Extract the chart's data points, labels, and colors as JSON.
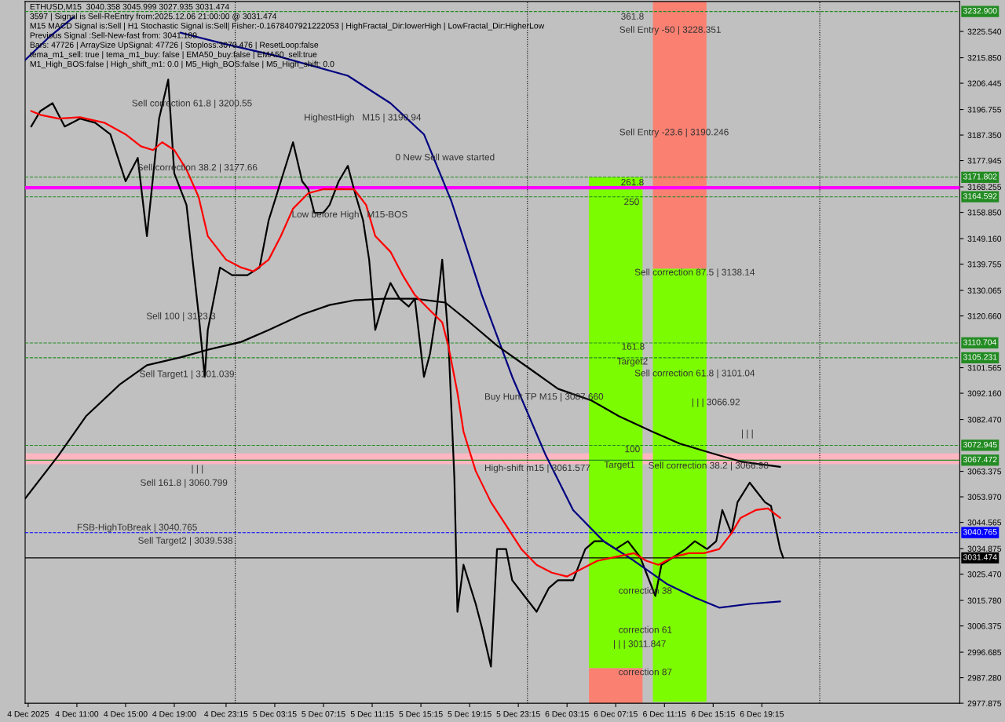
{
  "chart_data": {
    "type": "line",
    "title": "ETHUSD,M15  3040.358 3045.999 3027.935 3031.474",
    "xlim": [
      "2025-12-04T06:45",
      "2025-12-07T11:30"
    ],
    "ylim": [
      2977.875,
      3236.6
    ],
    "xticks": [
      {
        "value": "2025-12-04T07:00",
        "label": "4 Dec 2025"
      },
      {
        "value": "2025-12-04T11:00",
        "label": "4 Dec 11:00"
      },
      {
        "value": "2025-12-04T15:00",
        "label": "4 Dec 15:00"
      },
      {
        "value": "2025-12-04T19:00",
        "label": "4 Dec 19:00"
      },
      {
        "value": "2025-12-04T23:15",
        "label": "4 Dec 23:15"
      },
      {
        "value": "2025-12-05T03:15",
        "label": "5 Dec 03:15"
      },
      {
        "value": "2025-12-05T07:15",
        "label": "5 Dec 07:15"
      },
      {
        "value": "2025-12-05T11:15",
        "label": "5 Dec 11:15"
      },
      {
        "value": "2025-12-05T15:15",
        "label": "5 Dec 15:15"
      },
      {
        "value": "2025-12-05T19:15",
        "label": "5 Dec 19:15"
      },
      {
        "value": "2025-12-05T23:15",
        "label": "5 Dec 23:15"
      },
      {
        "value": "2025-12-06T03:15",
        "label": "6 Dec 03:15"
      },
      {
        "value": "2025-12-06T07:15",
        "label": "6 Dec 07:15"
      },
      {
        "value": "2025-12-06T11:15",
        "label": "6 Dec 11:15"
      },
      {
        "value": "2025-12-06T15:15",
        "label": "6 Dec 15:15"
      },
      {
        "value": "2025-12-06T19:15",
        "label": "6 Dec 19:15"
      }
    ],
    "yticks": [
      {
        "value": 3225.54,
        "label": "3225.540"
      },
      {
        "value": 3215.85,
        "label": "3215.850"
      },
      {
        "value": 3206.445,
        "label": "3206.445"
      },
      {
        "value": 3196.755,
        "label": "3196.755"
      },
      {
        "value": 3187.35,
        "label": "3187.350"
      },
      {
        "value": 3177.945,
        "label": "3177.945"
      },
      {
        "value": 3168.255,
        "label": "3168.255"
      },
      {
        "value": 3158.85,
        "label": "3158.850"
      },
      {
        "value": 3149.16,
        "label": "3149.160"
      },
      {
        "value": 3139.755,
        "label": "3139.755"
      },
      {
        "value": 3130.065,
        "label": "3130.065"
      },
      {
        "value": 3120.66,
        "label": "3120.660"
      },
      {
        "value": 3101.565,
        "label": "3101.565"
      },
      {
        "value": 3092.16,
        "label": "3092.160"
      },
      {
        "value": 3082.47,
        "label": "3082.470"
      },
      {
        "value": 3063.375,
        "label": "3063.375"
      },
      {
        "value": 3053.97,
        "label": "3053.970"
      },
      {
        "value": 3044.565,
        "label": "3044.565"
      },
      {
        "value": 3034.875,
        "label": "3034.875"
      },
      {
        "value": 3025.47,
        "label": "3025.470"
      },
      {
        "value": 3015.78,
        "label": "3015.780"
      },
      {
        "value": 3006.375,
        "label": "3006.375"
      },
      {
        "value": 2996.685,
        "label": "2996.685"
      },
      {
        "value": 2987.28,
        "label": "2987.280"
      },
      {
        "value": 2977.875,
        "label": "2977.875"
      }
    ],
    "grid": false,
    "legend": false,
    "series": [
      {
        "type": "bar",
        "color": "#7cfc00",
        "x": [
          "2025-12-06T07:15",
          "2025-12-06T12:30"
        ],
        "base": [
          2990.8,
          2978.4
        ],
        "values": [
          181.0,
          159.7
        ]
      },
      {
        "type": "bar",
        "color": "#fa8072",
        "x": [
          "2025-12-06T12:30",
          "2025-12-06T07:15"
        ],
        "base": [
          3138.1,
          2977.9
        ],
        "values": [
          98.5,
          12.9
        ]
      },
      {
        "color": "#000000",
        "x": [
          "2025-12-04T07:15",
          "2025-12-04T08:00",
          "2025-12-04T09:00",
          "2025-12-04T10:00",
          "2025-12-04T11:15",
          "2025-12-04T12:30",
          "2025-12-04T13:45",
          "2025-12-04T15:00",
          "2025-12-04T16:00",
          "2025-12-04T16:45",
          "2025-12-04T17:45",
          "2025-12-04T18:30",
          "2025-12-04T19:00",
          "2025-12-04T20:00",
          "2025-12-04T21:00",
          "2025-12-04T21:30",
          "2025-12-04T21:45",
          "2025-12-04T22:45",
          "2025-12-04T23:45",
          "2025-12-05T01:00",
          "2025-12-05T02:00",
          "2025-12-05T02:45",
          "2025-12-05T03:45",
          "2025-12-05T04:45",
          "2025-12-05T05:30",
          "2025-12-05T06:00",
          "2025-12-05T06:30",
          "2025-12-05T07:15",
          "2025-12-05T07:45",
          "2025-12-05T08:30",
          "2025-12-05T09:15",
          "2025-12-05T09:45",
          "2025-12-05T10:30",
          "2025-12-05T11:00",
          "2025-12-05T11:30",
          "2025-12-05T12:15",
          "2025-12-05T12:45",
          "2025-12-05T13:30",
          "2025-12-05T14:15",
          "2025-12-05T14:45",
          "2025-12-05T15:30",
          "2025-12-05T16:00",
          "2025-12-05T16:30",
          "2025-12-05T17:00",
          "2025-12-05T17:30",
          "2025-12-05T18:00",
          "2025-12-05T18:15",
          "2025-12-05T18:45",
          "2025-12-05T19:45",
          "2025-12-05T20:15",
          "2025-12-05T21:00",
          "2025-12-05T21:30",
          "2025-12-05T22:15",
          "2025-12-05T22:45",
          "2025-12-05T23:45",
          "2025-12-06T00:45",
          "2025-12-06T01:45",
          "2025-12-06T02:30",
          "2025-12-06T03:45",
          "2025-12-06T04:45",
          "2025-12-06T05:30",
          "2025-12-06T06:15",
          "2025-12-06T07:15",
          "2025-12-06T08:15",
          "2025-12-06T09:15",
          "2025-12-06T09:45",
          "2025-12-06T10:30",
          "2025-12-06T11:00",
          "2025-12-06T12:00",
          "2025-12-06T13:00",
          "2025-12-06T13:45",
          "2025-12-06T14:45",
          "2025-12-06T15:30",
          "2025-12-06T16:00",
          "2025-12-06T16:45",
          "2025-12-06T17:15",
          "2025-12-06T18:15",
          "2025-12-06T18:45",
          "2025-12-06T19:30",
          "2025-12-06T20:00",
          "2025-12-06T20:45",
          "2025-12-06T21:00"
        ],
        "values": [
          3190.5,
          3196.2,
          3199.1,
          3190.5,
          3193.4,
          3191.9,
          3187.6,
          3170.3,
          3178.9,
          3150.1,
          3193.4,
          3207.8,
          3173.2,
          3161.6,
          3121.2,
          3098.2,
          3115.5,
          3138.5,
          3135.7,
          3135.7,
          3138.5,
          3155.9,
          3170.3,
          3184.7,
          3170.3,
          3167.4,
          3158.7,
          3158.7,
          3161.6,
          3170.3,
          3176.0,
          3167.4,
          3155.9,
          3141.4,
          3115.5,
          3127.0,
          3132.8,
          3127.0,
          3124.1,
          3127.0,
          3098.2,
          3106.8,
          3121.2,
          3141.4,
          3112.6,
          3060.7,
          3011.6,
          3028.9,
          3014.5,
          3005.9,
          2991.4,
          3034.7,
          3034.7,
          3023.2,
          3017.4,
          3011.6,
          3020.3,
          3023.2,
          3023.2,
          3034.7,
          3037.6,
          3037.6,
          3034.7,
          3037.6,
          3031.8,
          3026.0,
          3017.4,
          3028.9,
          3031.8,
          3034.7,
          3037.6,
          3034.7,
          3037.6,
          3049.1,
          3040.5,
          3052.0,
          3059.2,
          3056.3,
          3052.0,
          3050.6,
          3034.7,
          3031.5
        ]
      },
      {
        "color": "#000080",
        "x": [
          "2025-12-04T06:45",
          "2025-12-04T08:45",
          "2025-12-04T10:45",
          "2025-12-04T15:00",
          "2025-12-04T19:30",
          "2025-12-04T23:15",
          "2025-12-05T03:30",
          "2025-12-05T09:15",
          "2025-12-05T12:45",
          "2025-12-05T15:30",
          "2025-12-05T17:45",
          "2025-12-05T20:15",
          "2025-12-05T22:45",
          "2025-12-06T01:30",
          "2025-12-06T03:45",
          "2025-12-06T06:15",
          "2025-12-06T08:45",
          "2025-12-06T11:30",
          "2025-12-06T13:45",
          "2025-12-06T15:45",
          "2025-12-06T18:15",
          "2025-12-06T20:45"
        ],
        "values": [
          3215.0,
          3223.6,
          3230.9,
          null,
          3225.1,
          3220.8,
          3216.4,
          3209.2,
          3199.1,
          3187.6,
          3163.0,
          3128.4,
          3098.2,
          3069.3,
          3049.1,
          3037.6,
          3030.4,
          3021.7,
          3016.8,
          3013.1,
          3014.5,
          3015.4
        ]
      },
      {
        "color": "#000000",
        "x": [
          "2025-12-04T06:45",
          "2025-12-04T09:30",
          "2025-12-04T11:45",
          "2025-12-04T14:30",
          "2025-12-04T16:45",
          "2025-12-04T19:30",
          "2025-12-04T21:45",
          "2025-12-05T00:30",
          "2025-12-05T02:45",
          "2025-12-05T05:30",
          "2025-12-05T07:45",
          "2025-12-05T09:45",
          "2025-12-05T12:15",
          "2025-12-05T14:45",
          "2025-12-05T17:15",
          "2025-12-05T19:15",
          "2025-12-05T21:30",
          "2025-12-06T00:15",
          "2025-12-06T02:30",
          "2025-12-06T05:15",
          "2025-12-06T07:30",
          "2025-12-06T10:15",
          "2025-12-06T12:30",
          "2025-12-06T15:15",
          "2025-12-06T17:30",
          "2025-12-06T20:45"
        ],
        "values": [
          3053.3,
          3069.3,
          3083.7,
          3095.3,
          3102.5,
          3105.4,
          3108.2,
          3111.1,
          3115.5,
          3121.2,
          3124.7,
          3126.4,
          3127.0,
          3127.0,
          3125.6,
          3118.3,
          3109.7,
          3101.0,
          3093.8,
          3089.5,
          3083.7,
          3078.0,
          3073.6,
          3069.9,
          3067.0,
          3065.0
        ]
      },
      {
        "color": "#ff0000",
        "x": [
          "2025-12-04T07:15",
          "2025-12-04T08:00",
          "2025-12-04T09:30",
          "2025-12-04T11:15",
          "2025-12-04T13:15",
          "2025-12-04T15:00",
          "2025-12-04T16:15",
          "2025-12-04T17:15",
          "2025-12-04T18:00",
          "2025-12-04T19:00",
          "2025-12-04T20:00",
          "2025-12-04T21:00",
          "2025-12-04T21:45",
          "2025-12-04T23:15",
          "2025-12-05T00:30",
          "2025-12-05T01:30",
          "2025-12-05T02:45",
          "2025-12-05T03:45",
          "2025-12-05T04:45",
          "2025-12-05T06:00",
          "2025-12-05T07:15",
          "2025-12-05T08:30",
          "2025-12-05T09:45",
          "2025-12-05T10:45",
          "2025-12-05T11:30",
          "2025-12-05T12:45",
          "2025-12-05T13:45",
          "2025-12-05T14:45",
          "2025-12-05T16:00",
          "2025-12-05T17:00",
          "2025-12-05T17:30",
          "2025-12-05T18:15",
          "2025-12-05T18:45",
          "2025-12-05T19:45",
          "2025-12-05T21:00",
          "2025-12-05T22:15",
          "2025-12-05T23:30",
          "2025-12-06T00:45",
          "2025-12-06T02:00",
          "2025-12-06T03:15",
          "2025-12-06T04:30",
          "2025-12-06T05:45",
          "2025-12-06T07:15",
          "2025-12-06T08:45",
          "2025-12-06T09:45",
          "2025-12-06T10:45",
          "2025-12-06T12:00",
          "2025-12-06T13:15",
          "2025-12-06T14:30",
          "2025-12-06T15:45",
          "2025-12-06T16:45",
          "2025-12-06T17:30",
          "2025-12-06T18:45",
          "2025-12-06T19:45",
          "2025-12-06T20:45"
        ],
        "values": [
          3196.2,
          3194.8,
          3193.4,
          3193.9,
          3191.9,
          3187.6,
          3183.2,
          3181.8,
          3184.7,
          3181.8,
          3174.6,
          3164.5,
          3150.1,
          3141.4,
          3138.5,
          3137.1,
          3141.4,
          3150.1,
          3160.2,
          3165.9,
          3167.4,
          3167.4,
          3167.4,
          3161.6,
          3150.1,
          3144.3,
          3135.7,
          3128.4,
          3122.7,
          3118.3,
          3109.7,
          3092.4,
          3078.0,
          3063.5,
          3052.0,
          3043.4,
          3034.7,
          3028.9,
          3026.0,
          3024.6,
          3027.5,
          3030.4,
          3031.8,
          3033.2,
          3030.4,
          3028.9,
          3031.8,
          3033.2,
          3033.2,
          3034.7,
          3040.5,
          3046.2,
          3049.1,
          3049.7,
          3046.2
        ]
      }
    ],
    "ref_lines": [
      {
        "axis": "y",
        "value": 3232.9,
        "label": "3232.900",
        "color": "#228b22",
        "line_style": "dashed"
      },
      {
        "axis": "y",
        "value": 3171.802,
        "label": "3171.802",
        "color": "#228b22",
        "line_style": "dashed"
      },
      {
        "axis": "y",
        "value": 3167.97,
        "label": null,
        "color": "#ff00ff",
        "line_style": "solid"
      },
      {
        "axis": "y",
        "value": 3164.592,
        "label": "3164.592",
        "color": "#228b22",
        "line_style": "dashed"
      },
      {
        "axis": "y",
        "value": 3110.704,
        "label": "3110.704",
        "color": "#228b22",
        "line_style": "dashed"
      },
      {
        "axis": "y",
        "value": 3105.231,
        "label": "3105.231",
        "color": "#228b22",
        "line_style": "dashed"
      },
      {
        "axis": "y",
        "value": 3072.945,
        "label": "3072.945",
        "color": "#228b22",
        "line_style": "dashed"
      },
      {
        "axis": "y",
        "value": 3067.472,
        "label": "3067.472",
        "color": "#228b22",
        "line_style": "solid"
      },
      {
        "axis": "y",
        "value": 3040.765,
        "label": "3040.765",
        "color": "#0000ff",
        "line_style": "dashed"
      },
      {
        "axis": "y",
        "value": 3031.474,
        "label": "3031.474",
        "color": "#000000",
        "line_style": "solid"
      },
      {
        "axis": "x",
        "value": "2025-12-05T00:00",
        "label": null,
        "color": "#000000",
        "line_style": "dotted"
      },
      {
        "axis": "x",
        "value": "2025-12-06T00:00",
        "label": null,
        "color": "#000000",
        "line_style": "dotted"
      },
      {
        "axis": "x",
        "value": "2025-12-07T00:00",
        "label": null,
        "color": "#000000",
        "line_style": "dotted"
      }
    ],
    "bands": [
      {
        "axis": "y",
        "from": 3066.0,
        "to": 3070.0,
        "label": null,
        "color": "#ffb6c1"
      }
    ],
    "annotations": [
      "3597 | Signal is Sell-ReEntry from:2025.12.06 21:00:00 @ 3031.474",
      "M15 MACD Signal is:Sell | H1 Stochastic Signal is:Sell| Fisher:-0.1678407921222053 | HighFractal_Dir:lowerHigh | LowFractal_Dir:HigherLow",
      "Previous Signal :Sell-New-fast from: 3041.189",
      "Bars: 47726 | ArraySize UpSignal: 47726 | Stoploss:3070.476 | ResetLoop:false",
      "tema_m1_sell: true | tema_m1_buy: false | EMA50_buy:false | EMA50_sell:true",
      "M1_High_BOS:false | High_shift_m1: 0.0 | M5_High_BOS:false | M5_High_shift: 0.0",
      "361.8",
      "Sell Entry -50 | 3228.351",
      "Sell correction 61.8 | 3200.55",
      "HighestHigh   M15 | 3190.94",
      "Sell Entry -23.6 | 3190.246",
      "0 New Sell wave started",
      "Sell correction 38.2 | 3177.66",
      "261.8",
      "250",
      "Low before High   M15-BOS",
      "Sell correction 87.5 | 3138.14",
      "Sell 100 | 3123.3",
      "161.8",
      "Target2",
      "Sell correction 61.8 | 3101.04",
      "Sell Target1 | 3101.039",
      "Buy Hunt TP M15 | 3087.660",
      "| | | 3066.92",
      "| | |",
      "100",
      "Target1",
      "Sell correction 38.2 | 3066.98",
      "High-shift m15 | 3061.577",
      "| | |",
      "Sell 161.8 | 3060.799",
      "FSB-HighToBreak | 3040.765",
      "Sell Target2 | 3039.538",
      "correction 38",
      "correction 61",
      "| | | 3011.847",
      "correction 87"
    ]
  }
}
